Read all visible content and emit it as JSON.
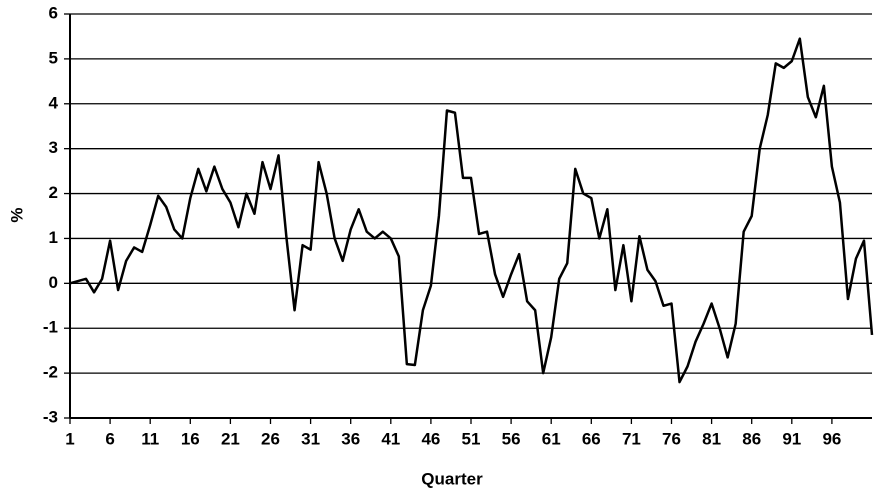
{
  "chart_data": {
    "type": "line",
    "xlabel": "Quarter",
    "ylabel": "%",
    "x": [
      1,
      2,
      3,
      4,
      5,
      6,
      7,
      8,
      9,
      10,
      11,
      12,
      13,
      14,
      15,
      16,
      17,
      18,
      19,
      20,
      21,
      22,
      23,
      24,
      25,
      26,
      27,
      28,
      29,
      30,
      31,
      32,
      33,
      34,
      35,
      36,
      37,
      38,
      39,
      40,
      41,
      42,
      43,
      44,
      45,
      46,
      47,
      48,
      49,
      50,
      51,
      52,
      53,
      54,
      55,
      56,
      57,
      58,
      59,
      60,
      61,
      62,
      63,
      64,
      65,
      66,
      67,
      68,
      69,
      70,
      71,
      72,
      73,
      74,
      75,
      76,
      77,
      78,
      79,
      80,
      81,
      82,
      83,
      84,
      85,
      86,
      87,
      88,
      89,
      90,
      91,
      92,
      93,
      94,
      95,
      96,
      97,
      98,
      99,
      100,
      101
    ],
    "series": [
      {
        "color": "#000000",
        "values": [
          0.0,
          0.05,
          0.1,
          -0.2,
          0.1,
          0.95,
          -0.15,
          0.5,
          0.8,
          0.7,
          1.3,
          1.95,
          1.7,
          1.2,
          1.0,
          1.9,
          2.55,
          2.05,
          2.6,
          2.1,
          1.8,
          1.25,
          2.0,
          1.55,
          2.7,
          2.1,
          2.85,
          1.0,
          -0.6,
          0.85,
          0.75,
          2.7,
          2.0,
          1.0,
          0.5,
          1.2,
          1.65,
          1.15,
          1.0,
          1.15,
          1.0,
          0.6,
          -1.8,
          -1.82,
          -0.6,
          -0.05,
          1.5,
          3.85,
          3.8,
          2.35,
          2.35,
          1.1,
          1.15,
          0.2,
          -0.3,
          0.2,
          0.65,
          -0.4,
          -0.6,
          -2.0,
          -1.2,
          0.1,
          0.45,
          2.55,
          2.0,
          1.9,
          1.0,
          1.65,
          -0.15,
          0.85,
          -0.4,
          1.05,
          0.3,
          0.05,
          -0.5,
          -0.45,
          -2.2,
          -1.85,
          -1.3,
          -0.9,
          -0.45,
          -1.0,
          -1.65,
          -0.9,
          1.15,
          1.5,
          3.0,
          3.75,
          4.9,
          4.8,
          4.95,
          5.45,
          4.15,
          3.7,
          4.4,
          2.6,
          1.8,
          -0.35,
          0.55,
          0.95,
          -1.15
        ]
      }
    ],
    "xlim": [
      1,
      101
    ],
    "xticks": [
      1,
      6,
      11,
      16,
      21,
      26,
      31,
      36,
      41,
      46,
      51,
      56,
      61,
      66,
      71,
      76,
      81,
      86,
      91,
      96
    ],
    "ylim": [
      -3,
      6
    ],
    "yticks": [
      -3,
      -2,
      -1,
      0,
      1,
      2,
      3,
      4,
      5,
      6
    ],
    "grid": true
  }
}
